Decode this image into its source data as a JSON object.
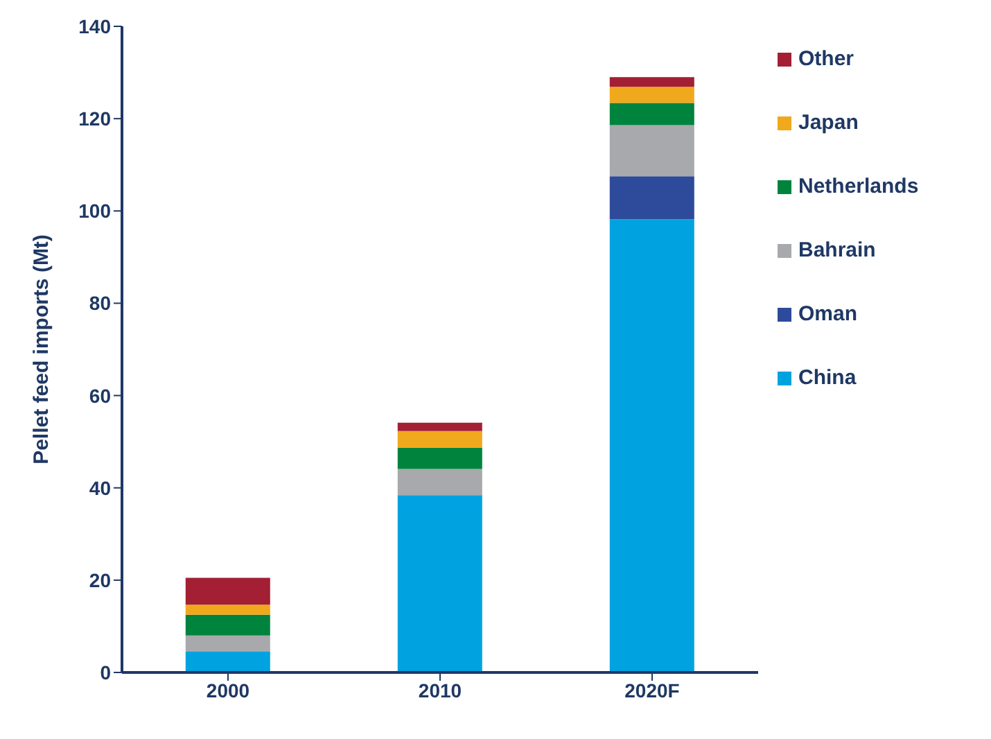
{
  "chart_data": {
    "type": "bar",
    "stacked": true,
    "ylabel": "Pellet feed imports (Mt)",
    "categories": [
      "2000",
      "2010",
      "2020F"
    ],
    "series": [
      {
        "name": "China",
        "color": "#00a3e0",
        "values": [
          4.5,
          38.4,
          98.2
        ]
      },
      {
        "name": "Oman",
        "color": "#2e4a9a",
        "values": [
          null,
          null,
          9.3
        ]
      },
      {
        "name": "Bahrain",
        "color": "#a7a9ac",
        "values": [
          3.5,
          5.7,
          11.1
        ]
      },
      {
        "name": "Netherlands",
        "color": "#00843d",
        "values": [
          4.5,
          4.6,
          4.8
        ]
      },
      {
        "name": "Japan",
        "color": "#f0a81c",
        "values": [
          2.2,
          3.6,
          3.5
        ]
      },
      {
        "name": "Other",
        "color": "#a31f34",
        "values": [
          5.8,
          1.8,
          2.1
        ]
      }
    ],
    "ylim": [
      0,
      140
    ],
    "yticks": [
      0,
      20,
      40,
      60,
      80,
      100,
      120,
      140
    ],
    "grid": false,
    "legend": "right"
  }
}
